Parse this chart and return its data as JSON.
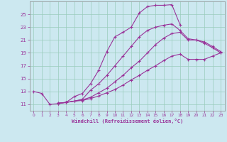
{
  "xlabel": "Windchill (Refroidissement éolien,°C)",
  "bg_color": "#cce8f0",
  "grid_color": "#99ccbb",
  "line_color": "#993399",
  "spine_color": "#888888",
  "xlim": [
    -0.5,
    23.5
  ],
  "ylim": [
    10.0,
    27.0
  ],
  "xticks": [
    0,
    1,
    2,
    3,
    4,
    5,
    6,
    7,
    8,
    9,
    10,
    11,
    12,
    13,
    14,
    15,
    16,
    17,
    18,
    19,
    20,
    21,
    22,
    23
  ],
  "yticks": [
    11,
    13,
    15,
    17,
    19,
    21,
    23,
    25
  ],
  "curves": [
    {
      "x": [
        0,
        1,
        2,
        3,
        4,
        5,
        6,
        7,
        8,
        9,
        10,
        11,
        12,
        13,
        14,
        15,
        16,
        17,
        18
      ],
      "y": [
        13.0,
        12.7,
        11.0,
        11.1,
        11.3,
        12.2,
        12.7,
        14.2,
        16.3,
        19.2,
        21.5,
        22.2,
        23.0,
        25.2,
        26.2,
        26.4,
        26.4,
        26.5,
        23.4
      ]
    },
    {
      "x": [
        3,
        4,
        5,
        6,
        7,
        8,
        9,
        10,
        11,
        12,
        13,
        14,
        15,
        16,
        17,
        18,
        19,
        20,
        21,
        22,
        23
      ],
      "y": [
        11.2,
        11.3,
        11.5,
        11.8,
        13.2,
        14.2,
        15.5,
        17.0,
        18.5,
        20.0,
        21.5,
        22.5,
        23.0,
        23.3,
        23.5,
        22.5,
        21.2,
        21.0,
        20.5,
        19.8,
        19.0
      ]
    },
    {
      "x": [
        3,
        4,
        5,
        6,
        7,
        8,
        9,
        10,
        11,
        12,
        13,
        14,
        15,
        16,
        17,
        18,
        19,
        20,
        21,
        22,
        23
      ],
      "y": [
        11.2,
        11.3,
        11.5,
        11.7,
        12.1,
        12.8,
        13.5,
        14.5,
        15.5,
        16.7,
        17.7,
        19.0,
        20.3,
        21.3,
        22.0,
        22.2,
        21.0,
        21.0,
        20.7,
        20.0,
        19.2
      ]
    },
    {
      "x": [
        3,
        4,
        5,
        6,
        7,
        8,
        9,
        10,
        11,
        12,
        13,
        14,
        15,
        16,
        17,
        18,
        19,
        20,
        21,
        22,
        23
      ],
      "y": [
        11.1,
        11.3,
        11.5,
        11.6,
        11.9,
        12.3,
        12.8,
        13.3,
        14.0,
        14.8,
        15.5,
        16.3,
        17.0,
        17.8,
        18.5,
        18.8,
        18.0,
        18.0,
        18.0,
        18.5,
        19.0
      ]
    }
  ]
}
